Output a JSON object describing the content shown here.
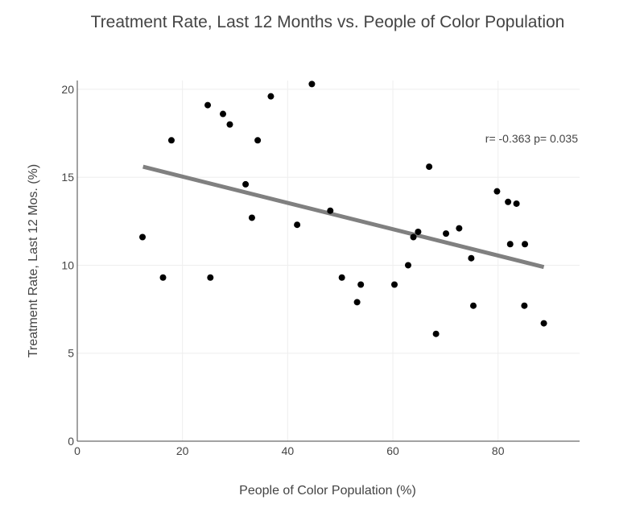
{
  "chart_data": {
    "type": "scatter",
    "title": "Treatment Rate, Last 12 Months vs. People of Color Population",
    "xlabel": "People of Color Population (%)",
    "ylabel": "Treatment Rate, Last 12 Mos. (%)",
    "xlim": [
      0,
      95.5
    ],
    "ylim": [
      0,
      20.5
    ],
    "x_ticks": [
      0,
      20,
      40,
      60,
      80
    ],
    "y_ticks": [
      0,
      5,
      10,
      15,
      20
    ],
    "grid": true,
    "legend": "none",
    "colors": {
      "points": "#000000",
      "trendline": "#808080",
      "grid": "#eeeeee",
      "axis": "#444444"
    },
    "annotation": "r= -0.363 p= 0.035",
    "trendline": {
      "x": [
        12.5,
        88.7
      ],
      "y": [
        15.6,
        9.9
      ]
    },
    "points": [
      {
        "x": 12.4,
        "y": 11.6
      },
      {
        "x": 16.3,
        "y": 9.3
      },
      {
        "x": 17.9,
        "y": 17.1
      },
      {
        "x": 24.8,
        "y": 19.1
      },
      {
        "x": 25.3,
        "y": 9.3
      },
      {
        "x": 27.7,
        "y": 18.6
      },
      {
        "x": 29.0,
        "y": 18.0
      },
      {
        "x": 32.0,
        "y": 14.6
      },
      {
        "x": 33.2,
        "y": 12.7
      },
      {
        "x": 34.3,
        "y": 17.1
      },
      {
        "x": 36.8,
        "y": 19.6
      },
      {
        "x": 41.8,
        "y": 12.3
      },
      {
        "x": 44.6,
        "y": 20.3
      },
      {
        "x": 48.1,
        "y": 13.1
      },
      {
        "x": 50.3,
        "y": 9.3
      },
      {
        "x": 53.2,
        "y": 7.9
      },
      {
        "x": 53.9,
        "y": 8.9
      },
      {
        "x": 60.3,
        "y": 8.9
      },
      {
        "x": 62.9,
        "y": 10.0
      },
      {
        "x": 63.9,
        "y": 11.6
      },
      {
        "x": 64.8,
        "y": 11.9
      },
      {
        "x": 66.9,
        "y": 15.6
      },
      {
        "x": 68.2,
        "y": 6.1
      },
      {
        "x": 70.1,
        "y": 11.8
      },
      {
        "x": 72.6,
        "y": 12.1
      },
      {
        "x": 74.9,
        "y": 10.4
      },
      {
        "x": 75.3,
        "y": 7.7
      },
      {
        "x": 79.8,
        "y": 14.2
      },
      {
        "x": 81.9,
        "y": 13.6
      },
      {
        "x": 82.3,
        "y": 11.2
      },
      {
        "x": 83.5,
        "y": 13.5
      },
      {
        "x": 85.1,
        "y": 11.2
      },
      {
        "x": 85.0,
        "y": 7.7
      },
      {
        "x": 88.7,
        "y": 6.7
      }
    ]
  }
}
